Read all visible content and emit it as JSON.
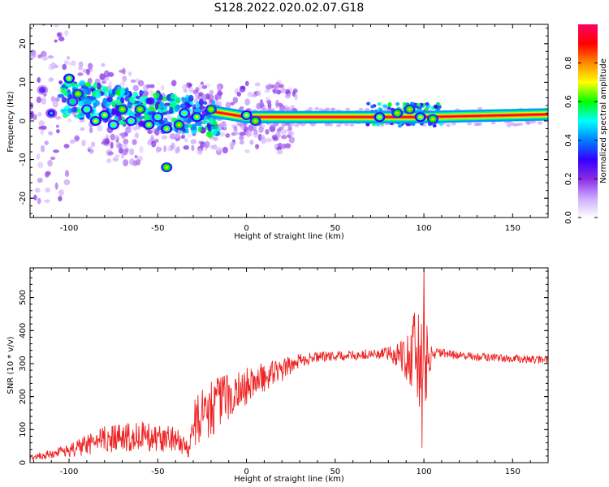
{
  "figure_title": "S128.2022.020.02.07.G18",
  "chart_data": [
    {
      "type": "heatmap",
      "xlabel": "Height of straight line (km)",
      "ylabel": "Frequency (Hz)",
      "xlim": [
        -122,
        170
      ],
      "ylim": [
        -25,
        25
      ],
      "xticks": [
        -100,
        -50,
        0,
        50,
        100,
        150
      ],
      "yticks": [
        -20,
        -10,
        0,
        10,
        20
      ],
      "colorbar": {
        "label": "Normalized spectral amplitude",
        "range": [
          0.0,
          1.0
        ],
        "ticks": [
          0.0,
          0.2,
          0.4,
          0.6,
          0.8
        ],
        "colormap": [
          "#ffffff",
          "#ccaaff",
          "#8a2be2",
          "#3300ff",
          "#0080ff",
          "#00ffff",
          "#00ff00",
          "#ffff00",
          "#ff8800",
          "#ff0000",
          "#ff0066"
        ]
      },
      "ridge": {
        "description_points_x": [
          -20,
          0,
          50,
          100,
          150,
          170
        ],
        "frequency_hz": [
          2.5,
          1.0,
          1.0,
          1.0,
          1.5,
          1.7
        ]
      },
      "blobs": [
        {
          "x": -115,
          "f": 8,
          "a": 0.2
        },
        {
          "x": -110,
          "f": 2,
          "a": 0.3
        },
        {
          "x": -100,
          "f": 11,
          "a": 0.55
        },
        {
          "x": -98,
          "f": 5,
          "a": 0.45
        },
        {
          "x": -95,
          "f": 7,
          "a": 0.6
        },
        {
          "x": -90,
          "f": 3,
          "a": 0.5
        },
        {
          "x": -85,
          "f": 0,
          "a": 0.55
        },
        {
          "x": -80,
          "f": 1.5,
          "a": 0.55
        },
        {
          "x": -75,
          "f": -1,
          "a": 0.5
        },
        {
          "x": -70,
          "f": 3,
          "a": 0.6
        },
        {
          "x": -65,
          "f": 0,
          "a": 0.5
        },
        {
          "x": -60,
          "f": 3,
          "a": 0.6
        },
        {
          "x": -55,
          "f": -1,
          "a": 0.55
        },
        {
          "x": -50,
          "f": 1,
          "a": 0.5
        },
        {
          "x": -45,
          "f": -12,
          "a": 0.6
        },
        {
          "x": -45,
          "f": -2,
          "a": 0.55
        },
        {
          "x": -38,
          "f": -1,
          "a": 0.6
        },
        {
          "x": -35,
          "f": 2,
          "a": 0.5
        },
        {
          "x": -28,
          "f": 1,
          "a": 0.55
        },
        {
          "x": -20,
          "f": 3,
          "a": 0.6
        },
        {
          "x": 0,
          "f": 1.5,
          "a": 0.55
        },
        {
          "x": 5,
          "f": 0,
          "a": 0.6
        },
        {
          "x": 75,
          "f": 1,
          "a": 0.55
        },
        {
          "x": 85,
          "f": 2,
          "a": 0.6
        },
        {
          "x": 92,
          "f": 3,
          "a": 0.6
        },
        {
          "x": 98,
          "f": 1,
          "a": 0.55
        },
        {
          "x": 105,
          "f": 0.5,
          "a": 0.6
        }
      ]
    },
    {
      "type": "line",
      "xlabel": "Height of straight line (km)",
      "ylabel": "SNR (10 * v/v)",
      "xlim": [
        -122,
        170
      ],
      "ylim": [
        0,
        590
      ],
      "xticks": [
        -100,
        -50,
        0,
        50,
        100,
        150
      ],
      "yticks": [
        0,
        100,
        200,
        300,
        400,
        500
      ],
      "series": [
        {
          "color": "#ee2222",
          "envelope": {
            "x": [
              -122,
              -100,
              -80,
              -60,
              -40,
              -32,
              -30,
              -20,
              -10,
              0,
              10,
              20,
              30,
              40,
              60,
              80,
              88,
              95,
              100,
              105,
              110,
              130,
              150,
              170
            ],
            "mean": [
              15,
              35,
              70,
              80,
              70,
              40,
              120,
              170,
              200,
              230,
              260,
              280,
              310,
              320,
              325,
              330,
              330,
              320,
              300,
              330,
              330,
              320,
              315,
              310
            ],
            "noise": [
              8,
              20,
              40,
              45,
              40,
              25,
              80,
              90,
              70,
              60,
              45,
              35,
              20,
              15,
              15,
              20,
              60,
              140,
              150,
              20,
              15,
              12,
              12,
              12
            ]
          },
          "peak": {
            "x": 100,
            "y": 590
          },
          "dip": {
            "x": 99,
            "y": 45
          }
        }
      ]
    }
  ]
}
